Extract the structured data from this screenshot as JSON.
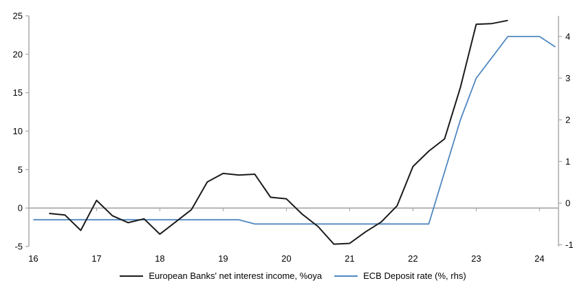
{
  "chart_data": {
    "type": "line",
    "legend_position": "bottom",
    "grid": "zero-line-only",
    "x_axis": {
      "ticks": [
        16,
        17,
        18,
        19,
        20,
        21,
        22,
        23,
        24
      ]
    },
    "y_axis_left": {
      "ticks": [
        25,
        20,
        15,
        10,
        5,
        0,
        -5
      ],
      "range": [
        -5,
        25
      ]
    },
    "y_axis_right": {
      "ticks": [
        4,
        3,
        2,
        1,
        0,
        -1
      ],
      "range": [
        -1,
        4.5
      ]
    },
    "series": [
      {
        "name": "European Banks' net interest income, %oya",
        "axis": "left",
        "color": "#1a1a1a",
        "x": [
          16.25,
          16.5,
          16.75,
          17.0,
          17.25,
          17.5,
          17.75,
          18.0,
          18.25,
          18.5,
          18.75,
          19.0,
          19.25,
          19.5,
          19.75,
          20.0,
          20.25,
          20.5,
          20.75,
          21.0,
          21.25,
          21.5,
          21.75,
          22.0,
          22.25,
          22.5,
          22.75,
          23.0,
          23.25,
          23.5
        ],
        "values": [
          -0.7,
          -0.9,
          -2.9,
          1.0,
          -1.0,
          -1.9,
          -1.4,
          -3.4,
          -1.8,
          -0.2,
          3.4,
          4.5,
          4.3,
          4.4,
          1.4,
          1.2,
          -0.8,
          -2.4,
          -4.7,
          -4.6,
          -3.1,
          -1.8,
          0.3,
          5.4,
          7.4,
          9.0,
          15.7,
          23.9,
          24.0,
          24.4
        ]
      },
      {
        "name": "ECB Deposit rate (%, rhs)",
        "axis": "right",
        "color": "#4f87c0",
        "x": [
          16.0,
          16.25,
          16.5,
          16.75,
          17.0,
          17.25,
          17.5,
          17.75,
          18.0,
          18.25,
          18.5,
          18.75,
          19.0,
          19.25,
          19.5,
          19.75,
          20.0,
          20.25,
          20.5,
          20.75,
          21.0,
          21.25,
          21.5,
          21.75,
          22.0,
          22.25,
          22.5,
          22.75,
          23.0,
          23.25,
          23.5,
          23.75,
          24.0,
          24.25
        ],
        "values": [
          -0.4,
          -0.4,
          -0.4,
          -0.4,
          -0.4,
          -0.4,
          -0.4,
          -0.4,
          -0.4,
          -0.4,
          -0.4,
          -0.4,
          -0.4,
          -0.4,
          -0.5,
          -0.5,
          -0.5,
          -0.5,
          -0.5,
          -0.5,
          -0.5,
          -0.5,
          -0.5,
          -0.5,
          -0.5,
          -0.5,
          0.75,
          2.0,
          3.0,
          3.5,
          4.0,
          4.0,
          4.0,
          3.75
        ]
      }
    ],
    "colors": {
      "axis_gray": "#a6a6a6",
      "zero_line_gray": "#a6a6a6",
      "text": "#000000"
    }
  }
}
